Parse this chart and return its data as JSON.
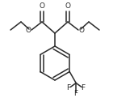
{
  "bg_color": "#ffffff",
  "line_color": "#2a2a2a",
  "line_width": 1.1,
  "figsize": [
    1.4,
    1.21
  ],
  "dpi": 100,
  "xlim": [
    0,
    140
  ],
  "ylim": [
    0,
    121
  ]
}
